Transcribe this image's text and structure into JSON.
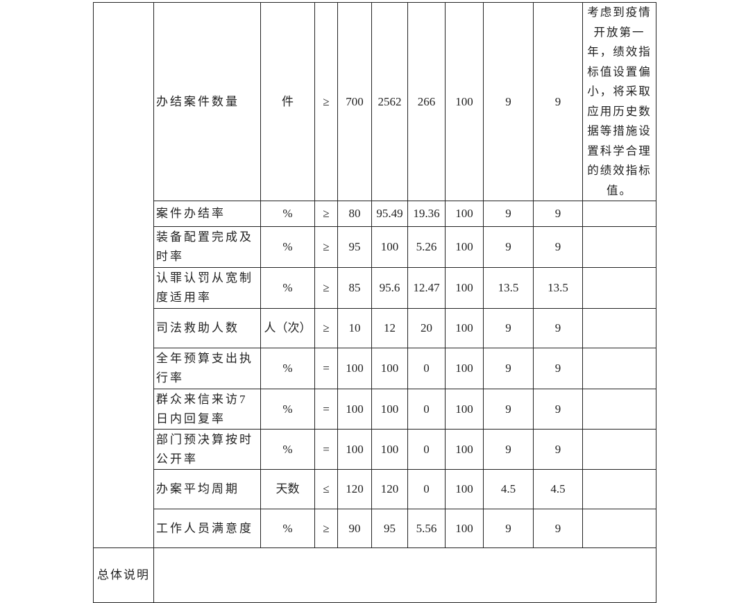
{
  "rows": [
    {
      "indicator": "办结案件数量",
      "unit": "件",
      "op": "≥",
      "target": "700",
      "actual": "2562",
      "deviation": "266",
      "completion": "100",
      "weight": "9",
      "score": "9",
      "note": "考虑到疫情开放第一年，绩效指标值设置偏小，将采取应用历史数据等措施设置科学合理的绩效指标值。"
    },
    {
      "indicator": "案件办结率",
      "unit": "%",
      "op": "≥",
      "target": "80",
      "actual": "95.49",
      "deviation": "19.36",
      "completion": "100",
      "weight": "9",
      "score": "9",
      "note": ""
    },
    {
      "indicator": "装备配置完成及时率",
      "unit": "%",
      "op": "≥",
      "target": "95",
      "actual": "100",
      "deviation": "5.26",
      "completion": "100",
      "weight": "9",
      "score": "9",
      "note": ""
    },
    {
      "indicator": "认罪认罚从宽制度适用率",
      "unit": "%",
      "op": "≥",
      "target": "85",
      "actual": "95.6",
      "deviation": "12.47",
      "completion": "100",
      "weight": "13.5",
      "score": "13.5",
      "note": ""
    },
    {
      "indicator": "司法救助人数",
      "unit": "人（次）",
      "op": "≥",
      "target": "10",
      "actual": "12",
      "deviation": "20",
      "completion": "100",
      "weight": "9",
      "score": "9",
      "note": ""
    },
    {
      "indicator": "全年预算支出执行率",
      "unit": "%",
      "op": "=",
      "target": "100",
      "actual": "100",
      "deviation": "0",
      "completion": "100",
      "weight": "9",
      "score": "9",
      "note": ""
    },
    {
      "indicator": "群众来信来访7日内回复率",
      "unit": "%",
      "op": "=",
      "target": "100",
      "actual": "100",
      "deviation": "0",
      "completion": "100",
      "weight": "9",
      "score": "9",
      "note": ""
    },
    {
      "indicator": "部门预决算按时公开率",
      "unit": "%",
      "op": "=",
      "target": "100",
      "actual": "100",
      "deviation": "0",
      "completion": "100",
      "weight": "9",
      "score": "9",
      "note": ""
    },
    {
      "indicator": "办案平均周期",
      "unit": "天数",
      "op": "≤",
      "target": "120",
      "actual": "120",
      "deviation": "0",
      "completion": "100",
      "weight": "4.5",
      "score": "4.5",
      "note": ""
    },
    {
      "indicator": "工作人员满意度",
      "unit": "%",
      "op": "≥",
      "target": "90",
      "actual": "95",
      "deviation": "5.56",
      "completion": "100",
      "weight": "9",
      "score": "9",
      "note": ""
    }
  ],
  "summary": {
    "label": "总体说明",
    "content": ""
  }
}
